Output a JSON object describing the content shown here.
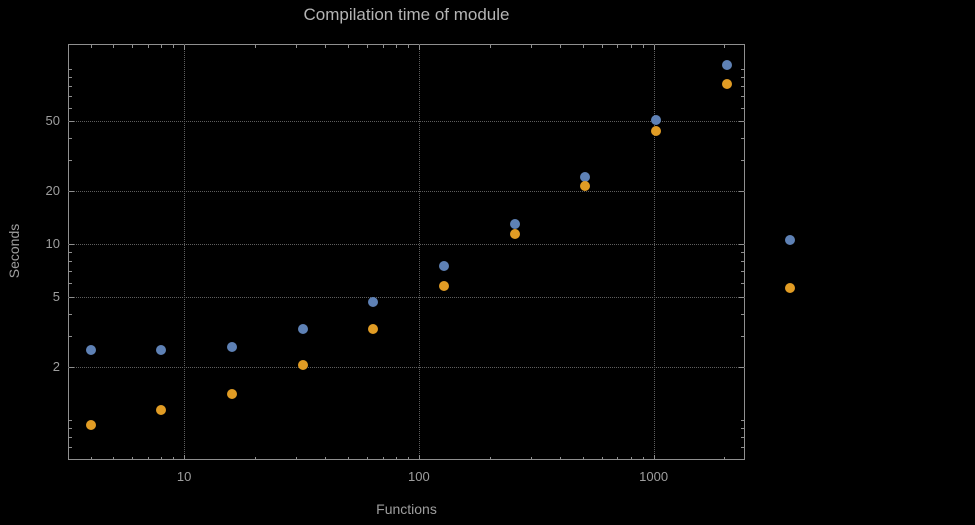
{
  "chart_data": {
    "type": "scatter",
    "title": "Compilation time of module",
    "xlabel": "Functions",
    "ylabel": "Seconds",
    "x_scale": "log",
    "y_scale": "log",
    "grid": "dotted",
    "x": [
      4,
      8,
      16,
      32,
      64,
      128,
      256,
      512,
      1024,
      2048
    ],
    "series": [
      {
        "name": "blue",
        "color": "#5E81B5",
        "values": [
          2.5,
          2.5,
          2.6,
          3.3,
          4.7,
          7.5,
          13,
          24,
          51,
          105
        ]
      },
      {
        "name": "orange",
        "color": "#E19C24",
        "values": [
          0.93,
          1.13,
          1.4,
          2.05,
          3.3,
          5.8,
          11.5,
          21.5,
          44,
          82
        ]
      }
    ],
    "x_ticks": [
      10,
      100,
      1000
    ],
    "y_ticks": [
      2,
      5,
      10,
      20,
      50
    ],
    "xlim": [
      3.2,
      2450
    ],
    "ylim": [
      0.59,
      138
    ],
    "legend": {
      "position": "right-outside",
      "markers": [
        "#5E81B5",
        "#E19C24"
      ]
    }
  },
  "colors": {
    "background": "#000000",
    "frame": "#8f8f8f",
    "grid": "#5e5e5e",
    "text": "#9e9e9e",
    "title": "#b4b4b4",
    "series_blue": "#5E81B5",
    "series_orange": "#E19C24"
  }
}
